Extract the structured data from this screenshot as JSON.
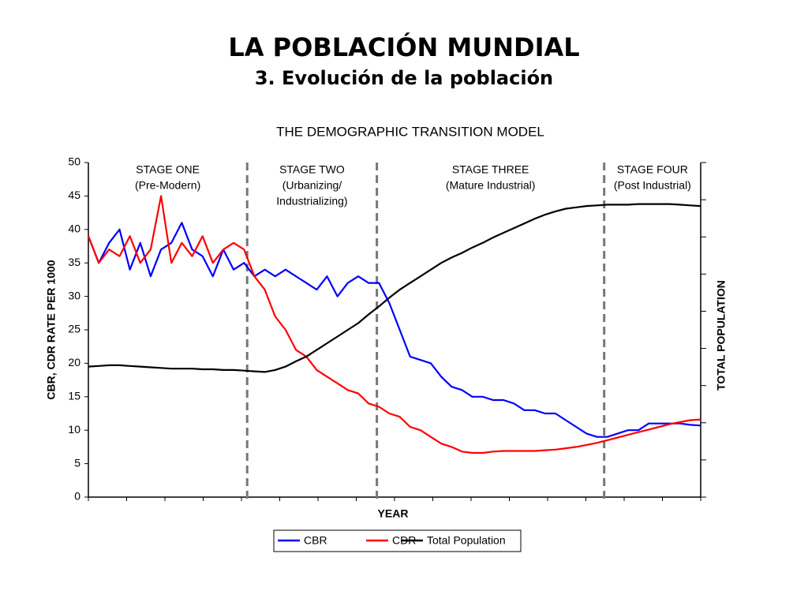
{
  "header": {
    "title": "LA POBLACIÓN MUNDIAL",
    "subtitle": "3. Evolución de la población"
  },
  "chart_data": {
    "type": "line",
    "title": "THE DEMOGRAPHIC TRANSITION MODEL",
    "x_label": "YEAR",
    "y_label": "CBR, CDR RATE PER 1000",
    "y2_label": "TOTAL POPULATION",
    "categories": [
      null,
      null,
      null,
      null,
      null,
      null,
      null,
      null,
      null,
      null,
      null,
      null,
      null,
      null,
      null,
      null,
      null,
      null,
      null,
      null,
      null,
      null,
      null,
      null,
      null,
      null,
      null,
      null,
      null,
      null,
      null,
      null,
      null,
      null,
      null,
      null,
      null,
      null,
      null,
      null,
      null,
      null,
      null,
      null,
      null,
      null,
      null,
      null,
      null,
      null,
      null,
      null,
      null,
      null,
      null,
      null,
      null,
      null,
      null,
      null
    ],
    "ylim": [
      0,
      50
    ],
    "yticks": [
      0,
      5,
      10,
      15,
      20,
      25,
      30,
      35,
      40,
      45,
      50
    ],
    "legend": "bottom",
    "series": [
      {
        "name": "CBR",
        "color": "#0000ff",
        "values": [
          39,
          35,
          38,
          40,
          34,
          38,
          33,
          37,
          38,
          41,
          37,
          36,
          33,
          37,
          34,
          35,
          33,
          34,
          33,
          34,
          33,
          32,
          31,
          33,
          30,
          32,
          33,
          32,
          32,
          29,
          25,
          21,
          20.5,
          20,
          18,
          16.5,
          16,
          15,
          15,
          14.5,
          14.5,
          14,
          13,
          13,
          12.5,
          12.5,
          11.5,
          10.5,
          9.5,
          9,
          9,
          9.5,
          10,
          10,
          11,
          11,
          11,
          11,
          10.8,
          10.7
        ]
      },
      {
        "name": "CDR",
        "color": "#ff0000",
        "values": [
          39,
          35,
          37,
          36,
          39,
          35,
          37,
          45,
          35,
          38,
          36,
          39,
          35,
          37,
          38,
          37,
          33,
          31,
          27,
          25,
          22,
          21,
          19,
          18,
          17,
          16,
          15.5,
          14,
          13.5,
          12.5,
          12,
          10.5,
          10,
          9,
          8,
          7.5,
          6.8,
          6.6,
          6.6,
          6.8,
          6.9,
          6.9,
          6.9,
          6.9,
          7,
          7.1,
          7.3,
          7.5,
          7.8,
          8.1,
          8.5,
          8.9,
          9.3,
          9.7,
          10.1,
          10.5,
          10.9,
          11.2,
          11.5,
          11.6
        ]
      },
      {
        "name": "Total Population",
        "color": "#000000",
        "values": [
          19.5,
          19.6,
          19.7,
          19.7,
          19.6,
          19.5,
          19.4,
          19.3,
          19.2,
          19.2,
          19.2,
          19.1,
          19.1,
          19,
          19,
          18.9,
          18.8,
          18.7,
          19,
          19.5,
          20.3,
          21,
          22,
          23,
          24,
          25,
          26,
          27.3,
          28.5,
          29.8,
          31,
          32,
          33,
          34,
          35,
          35.8,
          36.5,
          37.3,
          38,
          38.8,
          39.5,
          40.2,
          40.9,
          41.6,
          42.2,
          42.7,
          43.1,
          43.3,
          43.5,
          43.6,
          43.7,
          43.7,
          43.7,
          43.8,
          43.8,
          43.8,
          43.8,
          43.7,
          43.6,
          43.5
        ]
      }
    ],
    "stages": [
      {
        "lines": [
          "STAGE ONE",
          "(Pre-Modern)"
        ]
      },
      {
        "lines": [
          "STAGE TWO",
          "(Urbanizing/",
          "Industrializing)"
        ]
      },
      {
        "lines": [
          "STAGE THREE",
          "(Mature Industrial)"
        ]
      },
      {
        "lines": [
          "STAGE FOUR",
          "(Post Industrial)"
        ]
      }
    ],
    "stage_boundaries": [
      15.3,
      27.8,
      49.7
    ]
  }
}
